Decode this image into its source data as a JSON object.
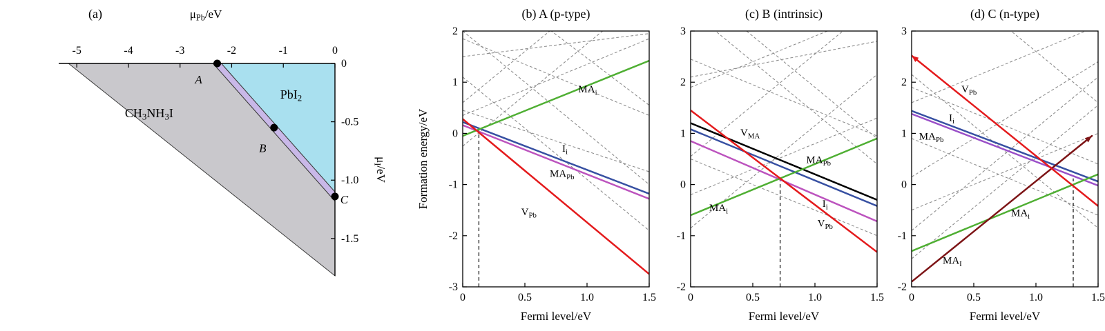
{
  "figure": {
    "background": "#ffffff"
  },
  "chart_data": [
    {
      "id": "panel-a",
      "type": "phase-diagram",
      "title": "(a)",
      "top_axis": {
        "label": "μ_{Pb}/eV",
        "tick_vals": [
          -5,
          -4,
          -3,
          -2,
          -1,
          0
        ],
        "tick_labels": [
          "-5",
          "-4",
          "-3",
          "-2",
          "-1",
          "0"
        ]
      },
      "right_axis": {
        "label": "μ_{I}/eV",
        "tick_vals": [
          0,
          -0.5,
          -1.0,
          -1.5
        ],
        "tick_labels": [
          "0",
          "-0.5",
          "-1.0",
          "-1.5"
        ]
      },
      "xlim": [
        -5.35,
        0
      ],
      "ylim": [
        -1.82,
        0
      ],
      "regions": [
        {
          "name": "CH3NH3I",
          "label": "CH_{3}NH_{3}I",
          "color": "#c9c8cc",
          "label_pos": [
            -3.6,
            -0.46
          ],
          "vertices": [
            [
              -5.16,
              0
            ],
            [
              -2.36,
              0
            ],
            [
              0,
              -1.18
            ],
            [
              0,
              -1.82
            ]
          ]
        },
        {
          "name": "MAPbI3-strip",
          "label": "",
          "color": "#c9b8e8",
          "vertices": [
            [
              -2.36,
              0
            ],
            [
              -2.2,
              0
            ],
            [
              0,
              -1.1
            ],
            [
              0,
              -1.18
            ]
          ]
        },
        {
          "name": "PbI2",
          "label": "PbI_{2}",
          "color": "#a9e0ef",
          "label_pos": [
            -0.85,
            -0.3
          ],
          "vertices": [
            [
              -2.2,
              0
            ],
            [
              0,
              0
            ],
            [
              0,
              -1.1
            ]
          ]
        }
      ],
      "points": [
        {
          "label": "A",
          "x": -2.28,
          "y": 0,
          "lx": -2.64,
          "ly": -0.17
        },
        {
          "label": "B",
          "x": -1.18,
          "y": -0.55,
          "lx": -1.4,
          "ly": -0.76
        },
        {
          "label": "C",
          "x": 0,
          "y": -1.14,
          "lx": 0.18,
          "ly": -1.2
        }
      ]
    },
    {
      "id": "panel-b",
      "type": "line",
      "title": "(b) A (p-type)",
      "xlabel": "Fermi level/eV",
      "ylabel": "Formation energy/eV",
      "xlim": [
        0,
        1.5
      ],
      "ylim": [
        -3,
        2
      ],
      "xticks": {
        "vals": [
          0,
          0.5,
          1.0,
          1.5
        ],
        "labels": [
          "0",
          "0.5",
          "1.0",
          "1.5"
        ]
      },
      "yticks": {
        "vals": [
          -3,
          -2,
          -1,
          0,
          1,
          2
        ],
        "labels": [
          "-3",
          "-2",
          "-1",
          "0",
          "1",
          "2"
        ]
      },
      "pin_line": {
        "x": 0.13,
        "y_top": 0.07
      },
      "background_lines": [
        [
          [
            0,
            1.85
          ],
          [
            1.5,
            0.35
          ]
        ],
        [
          [
            0,
            1.5
          ],
          [
            1.5,
            1.95
          ]
        ],
        [
          [
            0,
            0.6
          ],
          [
            1.5,
            3.6
          ]
        ],
        [
          [
            0,
            0.35
          ],
          [
            1.5,
            1.85
          ]
        ],
        [
          [
            0,
            1.1
          ],
          [
            1.5,
            -1.9
          ]
        ],
        [
          [
            0,
            2.0
          ],
          [
            1.5,
            -1.0
          ]
        ],
        [
          [
            0,
            -0.25
          ],
          [
            1.5,
            2.75
          ]
        ],
        [
          [
            0,
            0.45
          ],
          [
            1.5,
            -0.75
          ]
        ],
        [
          [
            0.55,
            2.3
          ],
          [
            1.5,
            0.55
          ]
        ]
      ],
      "series": [
        {
          "name": "MA-Pb",
          "label": "MA_{Pb}",
          "color": "#bc53be",
          "points": [
            [
              0,
              0.16
            ],
            [
              1.5,
              -1.28
            ]
          ],
          "label_pos": [
            0.7,
            -0.85
          ]
        },
        {
          "name": "I-i",
          "label": "I_{i}",
          "color": "#3750a2",
          "points": [
            [
              0,
              0.22
            ],
            [
              1.5,
              -1.18
            ]
          ],
          "label_pos": [
            0.8,
            -0.36
          ]
        },
        {
          "name": "MA-i",
          "label": "MA_{i}",
          "color": "#4faf33",
          "points": [
            [
              0,
              -0.05
            ],
            [
              1.5,
              1.42
            ]
          ],
          "label_pos": [
            0.93,
            0.8
          ]
        },
        {
          "name": "V-Pb",
          "label": "V_{Pb}",
          "color": "#e41a1c",
          "points": [
            [
              0,
              0.28
            ],
            [
              1.5,
              -2.75
            ]
          ],
          "label_pos": [
            0.47,
            -1.6
          ]
        }
      ]
    },
    {
      "id": "panel-c",
      "type": "line",
      "title": "(c) B (intrinsic)",
      "xlabel": "Fermi level/eV",
      "ylabel": "",
      "xlim": [
        0,
        1.5
      ],
      "ylim": [
        -2,
        3
      ],
      "xticks": {
        "vals": [
          0,
          0.5,
          1.0,
          1.5
        ],
        "labels": [
          "0",
          "0.5",
          "1.0",
          "1.5"
        ]
      },
      "yticks": {
        "vals": [
          -2,
          -1,
          0,
          1,
          2,
          3
        ],
        "labels": [
          "-2",
          "-1",
          "0",
          "1",
          "2",
          "3"
        ]
      },
      "pin_line": {
        "x": 0.72,
        "y_top": 0.12
      },
      "background_lines": [
        [
          [
            0,
            2.45
          ],
          [
            1.5,
            0.95
          ]
        ],
        [
          [
            0,
            1.9
          ],
          [
            1.5,
            3.4
          ]
        ],
        [
          [
            0,
            0.55
          ],
          [
            1.5,
            3.55
          ]
        ],
        [
          [
            0,
            -0.85
          ],
          [
            1.5,
            2.15
          ]
        ],
        [
          [
            0,
            3.4
          ],
          [
            1.5,
            0.4
          ]
        ],
        [
          [
            0,
            0.5
          ],
          [
            1.5,
            -1.0
          ]
        ],
        [
          [
            0,
            -0.2
          ],
          [
            1.5,
            1.3
          ]
        ],
        [
          [
            0.3,
            3.3
          ],
          [
            1.5,
            0.9
          ]
        ],
        [
          [
            0,
            2.1
          ],
          [
            1.5,
            2.8
          ]
        ]
      ],
      "series": [
        {
          "name": "V-MA",
          "label": "V_{MA}",
          "color": "#000000",
          "points": [
            [
              0,
              1.2
            ],
            [
              1.5,
              -0.3
            ]
          ],
          "label_pos": [
            0.4,
            0.95
          ]
        },
        {
          "name": "MA-Pb",
          "label": "MA_{Pb}",
          "color": "#3750a2",
          "points": [
            [
              0,
              1.08
            ],
            [
              1.5,
              -0.42
            ]
          ],
          "label_pos": [
            0.93,
            0.42
          ]
        },
        {
          "name": "I-i",
          "label": "I_{i}",
          "color": "#bc53be",
          "points": [
            [
              0,
              0.85
            ],
            [
              1.5,
              -0.72
            ]
          ],
          "label_pos": [
            1.06,
            -0.44
          ]
        },
        {
          "name": "MA-i",
          "label": "MA_{i}",
          "color": "#4faf33",
          "points": [
            [
              0,
              -0.6
            ],
            [
              1.5,
              0.9
            ]
          ],
          "label_pos": [
            0.15,
            -0.52
          ]
        },
        {
          "name": "V-Pb",
          "label": "V_{Pb}",
          "color": "#e41a1c",
          "points": [
            [
              0,
              1.45
            ],
            [
              1.5,
              -1.32
            ]
          ],
          "label_pos": [
            1.02,
            -0.82
          ]
        }
      ]
    },
    {
      "id": "panel-d",
      "type": "line",
      "title": "(d) C (n-type)",
      "xlabel": "Fermi level/eV",
      "ylabel": "",
      "xlim": [
        0,
        1.5
      ],
      "ylim": [
        -2,
        3
      ],
      "xticks": {
        "vals": [
          0,
          0.5,
          1.0,
          1.5
        ],
        "labels": [
          "0",
          "0.5",
          "1.0",
          "1.5"
        ]
      },
      "yticks": {
        "vals": [
          -2,
          -1,
          0,
          1,
          2,
          3
        ],
        "labels": [
          "-2",
          "-1",
          "0",
          "1",
          "2",
          "3"
        ]
      },
      "pin_line": {
        "x": 1.3,
        "y_top": 0.12
      },
      "background_lines": [
        [
          [
            0,
            1.9
          ],
          [
            1.5,
            0.4
          ]
        ],
        [
          [
            0,
            1.6
          ],
          [
            1.5,
            3.1
          ]
        ],
        [
          [
            0,
            -0.9
          ],
          [
            1.5,
            2.1
          ]
        ],
        [
          [
            0,
            -0.5
          ],
          [
            1.5,
            1.0
          ]
        ],
        [
          [
            0,
            2.15
          ],
          [
            1.5,
            -0.85
          ]
        ],
        [
          [
            0,
            0.9
          ],
          [
            1.5,
            -0.6
          ]
        ],
        [
          [
            0,
            -1.45
          ],
          [
            1.5,
            1.55
          ]
        ],
        [
          [
            0.6,
            3.4
          ],
          [
            1.5,
            1.6
          ]
        ],
        [
          [
            0,
            0.15
          ],
          [
            1.5,
            2.4
          ]
        ]
      ],
      "series": [
        {
          "name": "MA-Pb",
          "label": "MA_{Pb}",
          "color": "#9a4fc8",
          "points": [
            [
              0,
              1.38
            ],
            [
              1.5,
              -0.02
            ]
          ],
          "label_pos": [
            0.06,
            0.88
          ]
        },
        {
          "name": "I-i",
          "label": "I_{i}",
          "color": "#3750a2",
          "points": [
            [
              0,
              1.44
            ],
            [
              1.5,
              0.06
            ]
          ],
          "label_pos": [
            0.3,
            1.24
          ]
        },
        {
          "name": "MA-i",
          "label": "MA_{i}",
          "color": "#4faf33",
          "points": [
            [
              0,
              -1.3
            ],
            [
              1.5,
              0.2
            ]
          ],
          "label_pos": [
            0.8,
            -0.62
          ]
        },
        {
          "name": "MA-I",
          "label": "MA_{I}",
          "color": "#7d1416",
          "points": [
            [
              0,
              -1.9
            ],
            [
              1.45,
              0.95
            ]
          ],
          "label_pos": [
            0.25,
            -1.55
          ],
          "arrow_end": true
        },
        {
          "name": "V-Pb",
          "label": "V_{Pb}",
          "color": "#e41a1c",
          "points": [
            [
              0,
              2.52
            ],
            [
              1.5,
              -0.42
            ]
          ],
          "label_pos": [
            0.4,
            1.8
          ],
          "arrow_start": true
        }
      ]
    }
  ]
}
